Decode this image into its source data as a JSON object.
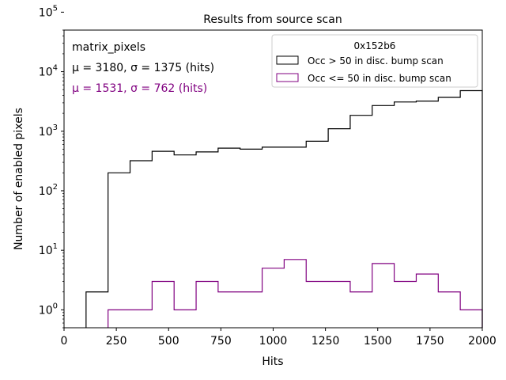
{
  "chart_data": {
    "type": "histogram",
    "title": "Results from source scan",
    "xlabel": "Hits",
    "ylabel": "Number of enabled pixels",
    "xlim": [
      0,
      2000
    ],
    "ylim_log": [
      0.5,
      50000
    ],
    "y_scale": "log",
    "x_ticks": [
      0,
      250,
      500,
      750,
      1000,
      1250,
      1500,
      1750,
      2000
    ],
    "x_tick_labels": [
      "0",
      "250",
      "500",
      "750",
      "1000",
      "1250",
      "1500",
      "1750",
      "2000"
    ],
    "y_ticks": [
      {
        "base": "10",
        "exp": "0",
        "value": 1
      },
      {
        "base": "10",
        "exp": "1",
        "value": 10
      },
      {
        "base": "10",
        "exp": "2",
        "value": 100
      },
      {
        "base": "10",
        "exp": "3",
        "value": 1000
      },
      {
        "base": "10",
        "exp": "4",
        "value": 10000
      },
      {
        "base": "10",
        "exp": "5",
        "value": 100000
      }
    ],
    "annotations": {
      "name": "matrix_pixels",
      "stats_1": "μ = 3180, σ = 1375 (hits)",
      "stats_2": "μ = 1531, σ = 762 (hits)",
      "stats_2_color": "#800080"
    },
    "legend": {
      "title": "0x152b6",
      "position": "top-right",
      "entries": [
        {
          "label": "Occ > 50 in disc. bump scan",
          "color": "#000000"
        },
        {
          "label": "Occ <= 50 in disc. bump scan",
          "color": "#800080"
        }
      ]
    },
    "series": [
      {
        "name": "Occ > 50 in disc. bump scan",
        "color": "#000000",
        "bin_edges": [
          105.3,
          210.5,
          315.8,
          421.1,
          526.3,
          631.6,
          736.8,
          842.1,
          947.4,
          1052.6,
          1157.9,
          1263.2,
          1368.4,
          1473.7,
          1578.9,
          1684.2,
          1789.5,
          1894.7,
          2000
        ],
        "counts": [
          2,
          200,
          320,
          460,
          400,
          450,
          520,
          500,
          540,
          540,
          680,
          1100,
          1850,
          2700,
          3100,
          3200,
          3700,
          4800
        ]
      },
      {
        "name": "Occ <= 50 in disc. bump scan",
        "color": "#800080",
        "bin_edges": [
          210.5,
          315.8,
          421.1,
          526.3,
          631.6,
          736.8,
          842.1,
          947.4,
          1052.6,
          1157.9,
          1263.2,
          1368.4,
          1473.7,
          1578.9,
          1684.2,
          1789.5,
          1894.7,
          2000
        ],
        "counts": [
          1,
          1,
          3,
          1,
          3,
          2,
          2,
          5,
          7,
          3,
          3,
          2,
          6,
          3,
          4,
          2,
          1
        ]
      }
    ]
  }
}
